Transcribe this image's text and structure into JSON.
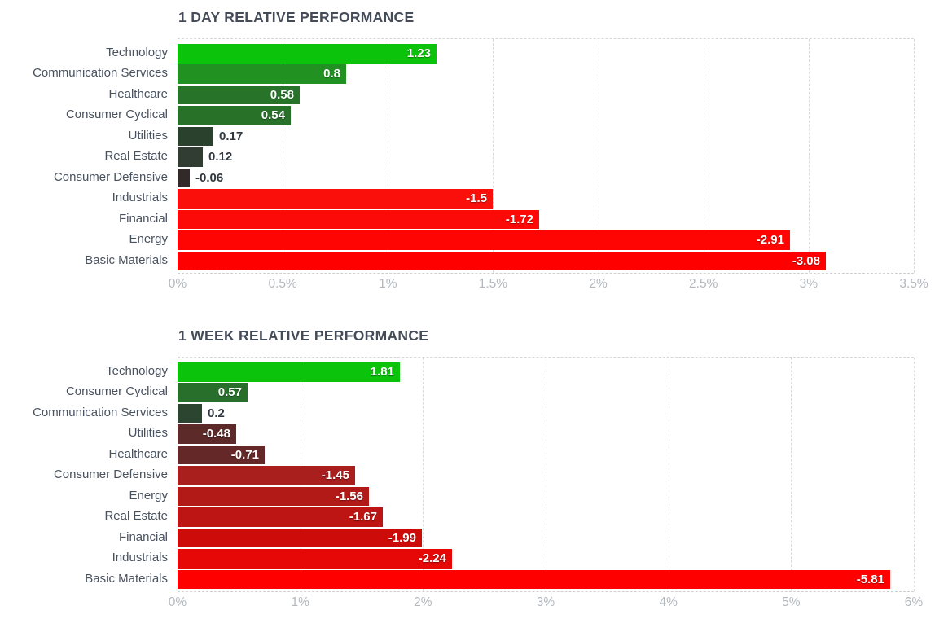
{
  "chart_data": [
    {
      "type": "bar",
      "orientation": "horizontal",
      "title": "1 DAY RELATIVE PERFORMANCE",
      "unit": "%",
      "xlim_percent": [
        0,
        3.5
      ],
      "ticks": [
        "0%",
        "0.5%",
        "1%",
        "1.5%",
        "2%",
        "2.5%",
        "3%",
        "3.5%"
      ],
      "grid": "dashed-vertical",
      "legend": "none",
      "rows": [
        {
          "label": "Technology",
          "value": 1.23,
          "display": "1.23",
          "color": "#0cc30c",
          "value_label_inside": true
        },
        {
          "label": "Communication Services",
          "value": 0.8,
          "display": "0.8",
          "color": "#219221",
          "value_label_inside": true
        },
        {
          "label": "Healthcare",
          "value": 0.58,
          "display": "0.58",
          "color": "#277329",
          "value_label_inside": true
        },
        {
          "label": "Consumer Cyclical",
          "value": 0.54,
          "display": "0.54",
          "color": "#287129",
          "value_label_inside": true
        },
        {
          "label": "Utilities",
          "value": 0.17,
          "display": "0.17",
          "color": "#2a422d",
          "value_label_inside": false
        },
        {
          "label": "Real Estate",
          "value": 0.12,
          "display": "0.12",
          "color": "#313c32",
          "value_label_inside": false
        },
        {
          "label": "Consumer Defensive",
          "value": -0.06,
          "display": "-0.06",
          "color": "#322a2a",
          "value_label_inside": false
        },
        {
          "label": "Industrials",
          "value": -1.5,
          "display": "-1.5",
          "color": "#fb0f0b",
          "value_label_inside": true
        },
        {
          "label": "Financial",
          "value": -1.72,
          "display": "-1.72",
          "color": "#fc0a07",
          "value_label_inside": true
        },
        {
          "label": "Energy",
          "value": -2.91,
          "display": "-2.91",
          "color": "#fe0402",
          "value_label_inside": true
        },
        {
          "label": "Basic Materials",
          "value": -3.08,
          "display": "-3.08",
          "color": "#ff0000",
          "value_label_inside": true
        }
      ]
    },
    {
      "type": "bar",
      "orientation": "horizontal",
      "title": "1 WEEK RELATIVE PERFORMANCE",
      "unit": "%",
      "xlim_percent": [
        0,
        6
      ],
      "ticks": [
        "0%",
        "1%",
        "2%",
        "3%",
        "4%",
        "5%",
        "6%"
      ],
      "grid": "dashed-vertical",
      "legend": "none",
      "rows": [
        {
          "label": "Technology",
          "value": 1.81,
          "display": "1.81",
          "color": "#0cc30c",
          "value_label_inside": true
        },
        {
          "label": "Consumer Cyclical",
          "value": 0.57,
          "display": "0.57",
          "color": "#276f2a",
          "value_label_inside": true
        },
        {
          "label": "Communication Services",
          "value": 0.2,
          "display": "0.2",
          "color": "#2c4530",
          "value_label_inside": false
        },
        {
          "label": "Utilities",
          "value": -0.48,
          "display": "-0.48",
          "color": "#5c2a29",
          "value_label_inside": true
        },
        {
          "label": "Healthcare",
          "value": -0.71,
          "display": "-0.71",
          "color": "#632827",
          "value_label_inside": true
        },
        {
          "label": "Consumer Defensive",
          "value": -1.45,
          "display": "-1.45",
          "color": "#a81f1e",
          "value_label_inside": true
        },
        {
          "label": "Energy",
          "value": -1.56,
          "display": "-1.56",
          "color": "#b21a18",
          "value_label_inside": true
        },
        {
          "label": "Real Estate",
          "value": -1.67,
          "display": "-1.67",
          "color": "#bc1513",
          "value_label_inside": true
        },
        {
          "label": "Financial",
          "value": -1.99,
          "display": "-1.99",
          "color": "#cd0c0a",
          "value_label_inside": true
        },
        {
          "label": "Industrials",
          "value": -2.24,
          "display": "-2.24",
          "color": "#e60707",
          "value_label_inside": true
        },
        {
          "label": "Basic Materials",
          "value": -5.81,
          "display": "-5.81",
          "color": "#ff0000",
          "value_label_inside": true
        }
      ]
    }
  ],
  "style_colors": {
    "title_text": "#454c59",
    "category_label_text": "#49525f",
    "axis_tick_text": "#b3b8bf",
    "value_text_inside": "#ffffff",
    "value_text_outside": "#30373e",
    "gridline": "#dadbdd",
    "background": "#ffffff"
  }
}
